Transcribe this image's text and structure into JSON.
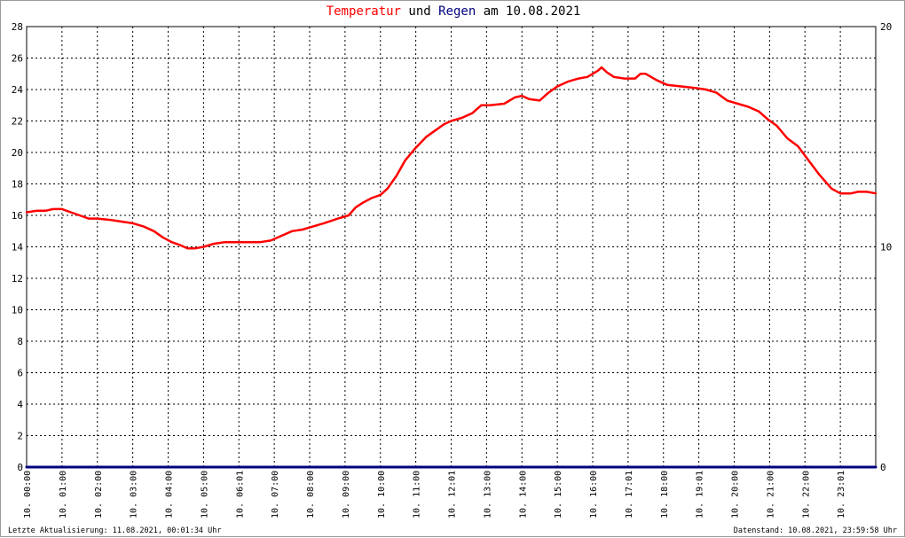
{
  "title": {
    "part1": "Temperatur",
    "part2": " und ",
    "part3": "Regen",
    "part4": " am 10.08.2021",
    "color_temp": "#ff0000",
    "color_rain": "#000080"
  },
  "footer": {
    "left": "Letzte Aktualisierung: 11.08.2021, 00:01:34 Uhr",
    "right": "Datenstand: 10.08.2021, 23:59:58 Uhr"
  },
  "chart_data": {
    "type": "line",
    "title": "Temperatur und Regen am 10.08.2021",
    "grid": true,
    "y_left": {
      "min": 0,
      "max": 28,
      "ticks": [
        0,
        2,
        4,
        6,
        8,
        10,
        12,
        14,
        16,
        18,
        20,
        22,
        24,
        26,
        28
      ]
    },
    "y_right": {
      "min": 0,
      "max": 20,
      "ticks": [
        0,
        10,
        20
      ]
    },
    "x_range": [
      0,
      24
    ],
    "x_tick_labels": [
      "10. 00:00",
      "10. 01:00",
      "10. 02:00",
      "10. 03:00",
      "10. 04:00",
      "10. 05:00",
      "10. 06:01",
      "10. 07:00",
      "10. 08:00",
      "10. 09:00",
      "10. 10:00",
      "10. 11:00",
      "10. 12:01",
      "10. 13:00",
      "10. 14:00",
      "10. 15:00",
      "10. 16:00",
      "10. 17:01",
      "10. 18:00",
      "10. 19:01",
      "10. 20:00",
      "10. 21:00",
      "10. 22:00",
      "10. 23:01"
    ],
    "series": [
      {
        "name": "Temperatur",
        "color": "#ff0000",
        "axis": "left",
        "x": [
          0,
          0.3,
          0.55,
          0.75,
          1.0,
          1.25,
          1.5,
          1.75,
          2.0,
          2.4,
          2.7,
          3.0,
          3.3,
          3.6,
          3.85,
          4.1,
          4.35,
          4.55,
          4.75,
          5.0,
          5.3,
          5.6,
          5.9,
          6.25,
          6.6,
          6.9,
          7.2,
          7.5,
          7.8,
          8.1,
          8.4,
          8.8,
          9.1,
          9.3,
          9.5,
          9.75,
          10.0,
          10.2,
          10.45,
          10.7,
          11.0,
          11.3,
          11.55,
          11.8,
          12.0,
          12.3,
          12.6,
          12.85,
          13.1,
          13.5,
          13.8,
          14.0,
          14.2,
          14.5,
          14.75,
          15.0,
          15.3,
          15.6,
          15.85,
          16.0,
          16.15,
          16.25,
          16.4,
          16.6,
          16.9,
          17.2,
          17.35,
          17.5,
          17.8,
          18.1,
          18.5,
          18.9,
          19.2,
          19.5,
          19.8,
          20.1,
          20.4,
          20.7,
          20.95,
          21.2,
          21.5,
          21.8,
          22.1,
          22.4,
          22.75,
          23.0,
          23.3,
          23.5,
          23.75,
          24.0
        ],
        "values": [
          16.2,
          16.3,
          16.3,
          16.4,
          16.4,
          16.2,
          16.0,
          15.8,
          15.8,
          15.7,
          15.6,
          15.5,
          15.3,
          15.0,
          14.6,
          14.3,
          14.1,
          13.9,
          13.9,
          14.0,
          14.2,
          14.3,
          14.3,
          14.3,
          14.3,
          14.4,
          14.7,
          15.0,
          15.1,
          15.3,
          15.5,
          15.8,
          16.0,
          16.5,
          16.8,
          17.1,
          17.3,
          17.7,
          18.5,
          19.5,
          20.3,
          21.0,
          21.4,
          21.8,
          22.0,
          22.2,
          22.5,
          23.0,
          23.0,
          23.1,
          23.5,
          23.6,
          23.4,
          23.3,
          23.8,
          24.2,
          24.5,
          24.7,
          24.8,
          25.0,
          25.2,
          25.4,
          25.1,
          24.8,
          24.7,
          24.7,
          25.0,
          25.0,
          24.6,
          24.3,
          24.2,
          24.1,
          24.0,
          23.8,
          23.3,
          23.1,
          22.9,
          22.6,
          22.1,
          21.7,
          20.9,
          20.4,
          19.5,
          18.6,
          17.7,
          17.4,
          17.4,
          17.5,
          17.5,
          17.4
        ]
      },
      {
        "name": "Regen",
        "color": "#000080",
        "axis": "right",
        "x": [
          0,
          24
        ],
        "values": [
          0,
          0
        ]
      }
    ]
  }
}
